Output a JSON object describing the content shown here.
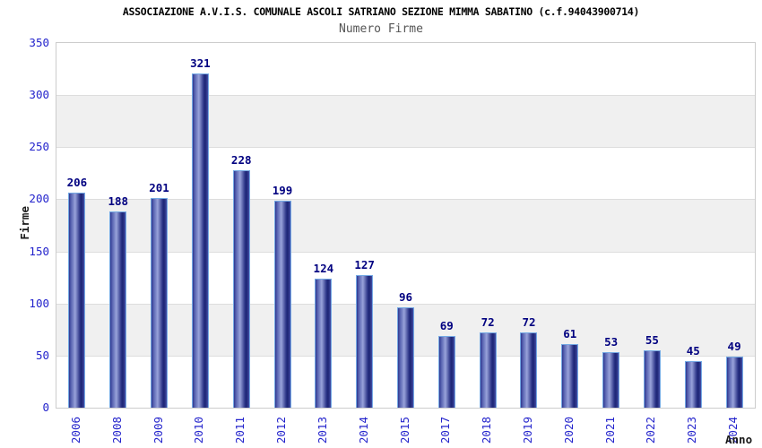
{
  "header": {
    "title": "ASSOCIAZIONE A.V.I.S. COMUNALE ASCOLI SATRIANO SEZIONE MIMMA SABATINO (c.f.94043900714)",
    "subtitle": "Numero Firme"
  },
  "chart_data": {
    "type": "bar",
    "title": "Numero Firme",
    "categories": [
      "2006",
      "2008",
      "2009",
      "2010",
      "2011",
      "2012",
      "2013",
      "2014",
      "2015",
      "2017",
      "2018",
      "2019",
      "2020",
      "2021",
      "2022",
      "2023",
      "2024"
    ],
    "values": [
      206,
      188,
      201,
      321,
      228,
      199,
      124,
      127,
      96,
      69,
      72,
      72,
      61,
      53,
      55,
      45,
      49
    ],
    "xlabel": "Anno",
    "ylabel": "Firme",
    "ylim": [
      0,
      350
    ],
    "yticks": [
      0,
      50,
      100,
      150,
      200,
      250,
      300,
      350
    ],
    "grid": "alternating horizontal bands every 50 units",
    "legend": "none",
    "bar_value_labels_shown": true
  },
  "colors": {
    "title": "#000000",
    "subtitle": "#555555",
    "tick_label": "#2424cc",
    "value_label": "#000080",
    "axis_title": "#1a1a1a",
    "band_gray": "#f0f0f0",
    "band_white": "#ffffff",
    "gridline": "#dddddd",
    "plot_border": "#cccccc",
    "bar_border": "#74a9e4",
    "bar_gradient": [
      "#2f378f",
      "#545fae",
      "#98a2da",
      "#2a3386",
      "#1d2574",
      "#434da5"
    ]
  }
}
